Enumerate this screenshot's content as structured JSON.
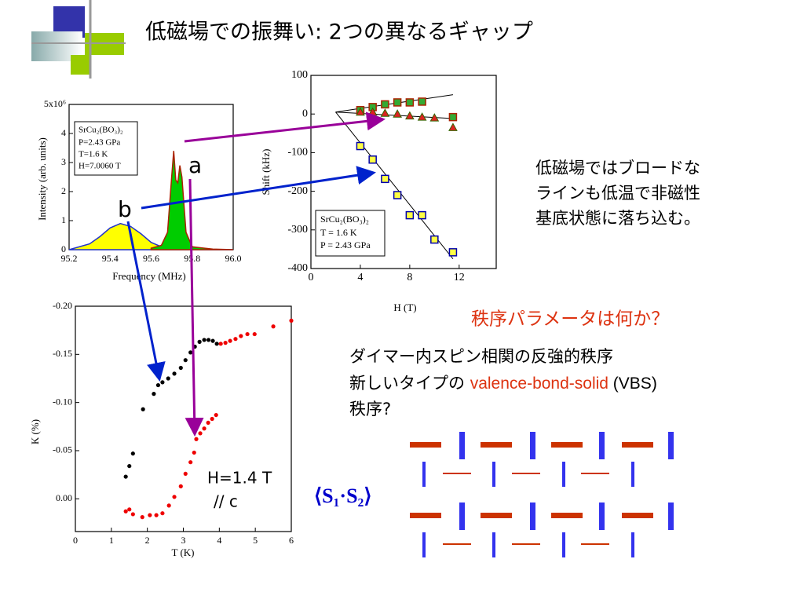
{
  "title": "低磁場での振舞い: 2つの異なるギャップ",
  "labels": {
    "a": "a",
    "b": "b"
  },
  "side_note": [
    "低磁場ではブロードな",
    "ラインも低温で非磁性",
    "基底状態に落ち込む。"
  ],
  "question": "秩序パラメータは何か？",
  "body": {
    "line1": "ダイマー内スピン相関の反強的秩序",
    "line2": [
      "新しいタイプの ",
      "valence-bond-solid",
      " (VBS)"
    ],
    "line3": "秩序?"
  },
  "formula": "⟨S₁·S₂⟩",
  "chart_data": [
    {
      "type": "area",
      "xlabel": "Frequency (MHz)",
      "ylabel": "Intensity (arb. units)",
      "annotations": [
        "SrCu₂(BO₃)₂",
        "P=2.43 GPa",
        "T=1.6 K",
        "H=7.0060 T"
      ],
      "xlim": [
        95.2,
        96.0
      ],
      "xticks": [
        95.2,
        95.4,
        95.6,
        95.8,
        {
          "value": 96,
          "label": "96.0"
        }
      ],
      "ylim": [
        0,
        5
      ],
      "yticks": [
        0,
        1,
        2,
        3,
        4,
        {
          "value": 5,
          "label": "5x10⁶"
        }
      ],
      "series": [
        {
          "color": "#ffff00",
          "x": [
            95.2,
            95.3,
            95.35,
            95.4,
            95.45,
            95.5,
            95.55,
            95.6,
            95.65,
            95.7,
            95.8,
            96.0
          ],
          "values": [
            0,
            0.2,
            0.45,
            0.75,
            0.9,
            0.8,
            0.55,
            0.25,
            0.1,
            0.03,
            0,
            0
          ]
        },
        {
          "color": "#00cc00",
          "x": [
            95.6,
            95.65,
            95.68,
            95.7,
            95.71,
            95.72,
            95.73,
            95.74,
            95.75,
            95.77,
            95.8,
            95.9,
            96.0
          ],
          "values": [
            0.05,
            0.15,
            0.6,
            2.5,
            3.4,
            2.4,
            2.3,
            2.9,
            2.5,
            0.6,
            0.1,
            0.02,
            0
          ]
        }
      ]
    },
    {
      "type": "scatter",
      "xlabel": "H (T)",
      "ylabel": "Shift (kHz)",
      "annotations": [
        "SrCu₂(BO₃)₂",
        "T = 1.6 K",
        "P = 2.43 GPa"
      ],
      "xlim": [
        0,
        15
      ],
      "xticks": [
        0,
        4,
        8,
        12
      ],
      "ylim": [
        -400,
        100
      ],
      "yticks": [
        -400,
        -300,
        -200,
        -100,
        0,
        100
      ],
      "series": [
        {
          "color": "#33aa33",
          "marker": "square",
          "x": [
            4,
            5,
            6,
            7,
            8,
            9,
            11.5
          ],
          "values": [
            10,
            18,
            25,
            30,
            30,
            32,
            -8
          ]
        },
        {
          "color": "#dd2222",
          "marker": "triangle",
          "x": [
            4,
            5,
            6,
            7,
            8,
            9,
            10,
            11.5
          ],
          "values": [
            5,
            5,
            2,
            0,
            -5,
            -8,
            -10,
            -35
          ]
        },
        {
          "color": "#ffff44",
          "marker": "square",
          "x": [
            4,
            5,
            6,
            7,
            8,
            9,
            10,
            11.5
          ],
          "values": [
            -83,
            -118,
            -168,
            -210,
            -262,
            -262,
            -325,
            -358
          ]
        }
      ],
      "lines": [
        {
          "x": [
            2,
            11.5
          ],
          "values": [
            5,
            50
          ]
        },
        {
          "x": [
            2,
            11.7
          ],
          "values": [
            5,
            -12
          ]
        },
        {
          "x": [
            2,
            11.5
          ],
          "values": [
            5,
            -375
          ]
        }
      ]
    },
    {
      "type": "scatter",
      "xlabel": "T (K)",
      "ylabel": "K (%)",
      "annotations": [
        "H=1.4 T",
        "// c"
      ],
      "xlim": [
        0,
        6
      ],
      "xticks": [
        0,
        1,
        2,
        3,
        4,
        5,
        6
      ],
      "ylim": [
        0.034,
        -0.2
      ],
      "yticks": [
        {
          "value": -0.2,
          "label": "-0.20"
        },
        -0.15,
        {
          "value": -0.1,
          "label": "-0.10"
        },
        -0.05,
        {
          "value": 0,
          "label": "0.00"
        }
      ],
      "series": [
        {
          "color": "#000000",
          "marker": "circle",
          "x": [
            1.4,
            1.5,
            1.6,
            1.88,
            2.18,
            2.3,
            2.42,
            2.58,
            2.75,
            2.93,
            3.06,
            3.2,
            3.32,
            3.45,
            3.58,
            3.7,
            3.82,
            3.93
          ],
          "values": [
            -0.023,
            -0.034,
            -0.047,
            -0.093,
            -0.109,
            -0.118,
            -0.121,
            -0.125,
            -0.13,
            -0.136,
            -0.144,
            -0.152,
            -0.158,
            -0.163,
            -0.165,
            -0.165,
            -0.164,
            -0.161
          ]
        },
        {
          "color": "#ee0000",
          "marker": "circle",
          "x": [
            1.4,
            1.5,
            1.6,
            1.86,
            2.07,
            2.25,
            2.42,
            2.6,
            2.75,
            2.93,
            3.06,
            3.2,
            3.3,
            3.36,
            3.47,
            3.58,
            3.69,
            3.8,
            3.91,
            4.04,
            4.17,
            4.3,
            4.45,
            4.6,
            4.78,
            4.98,
            5.5,
            6.0
          ],
          "values": [
            0.013,
            0.011,
            0.016,
            0.019,
            0.017,
            0.017,
            0.015,
            0.007,
            -0.002,
            -0.013,
            -0.026,
            -0.038,
            -0.048,
            -0.062,
            -0.068,
            -0.073,
            -0.079,
            -0.083,
            -0.087,
            -0.161,
            -0.162,
            -0.164,
            -0.166,
            -0.169,
            -0.171,
            -0.171,
            -0.179,
            -0.185
          ]
        }
      ]
    }
  ]
}
